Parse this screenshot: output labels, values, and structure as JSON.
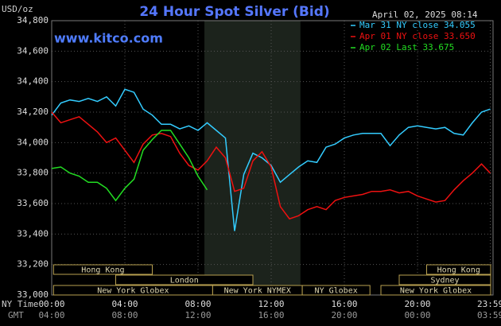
{
  "chart_data": {
    "type": "line",
    "title": "24 Hour Spot Silver (Bid)",
    "y_label": "USD/oz",
    "timestamp": "April 02, 2025 08:14",
    "source": "www.kitco.com",
    "x_label": "NY Time",
    "x2_label": "GMT",
    "x": [
      0,
      0.5,
      1,
      1.5,
      2,
      2.5,
      3,
      3.5,
      4,
      4.5,
      5,
      5.5,
      6,
      6.5,
      7,
      7.5,
      8,
      8.5,
      9,
      9.5,
      10,
      10.5,
      11,
      11.5,
      12,
      12.5,
      13,
      13.5,
      14,
      14.5,
      15,
      15.5,
      16,
      16.5,
      17,
      17.5,
      18,
      18.5,
      19,
      19.5,
      20,
      20.5,
      21,
      21.5,
      22,
      22.5,
      23,
      23.5,
      23.98
    ],
    "series": [
      {
        "name": "Mar 31 NY close 34.055",
        "color": "#33ccff",
        "values": [
          34180,
          34260,
          34280,
          34270,
          34290,
          34270,
          34300,
          34240,
          34350,
          34330,
          34220,
          34180,
          34120,
          34120,
          34090,
          34110,
          34080,
          34130,
          34080,
          34030,
          33420,
          33790,
          33930,
          33900,
          33850,
          33740,
          33790,
          33840,
          33880,
          33870,
          33970,
          33990,
          34030,
          34050,
          34060,
          34060,
          34060,
          33980,
          34050,
          34100,
          34110,
          34100,
          34090,
          34100,
          34060,
          34050,
          34130,
          34200,
          34220
        ]
      },
      {
        "name": "Apr 01 NY close 33.650",
        "color": "#ee1111",
        "values": [
          34200,
          34130,
          34150,
          34170,
          34120,
          34070,
          34000,
          34030,
          33950,
          33870,
          33990,
          34050,
          34060,
          34040,
          33930,
          33850,
          33820,
          33880,
          33970,
          33900,
          33680,
          33700,
          33880,
          33940,
          33840,
          33580,
          33500,
          33520,
          33560,
          33580,
          33560,
          33620,
          33640,
          33650,
          33660,
          33680,
          33680,
          33690,
          33670,
          33680,
          33650,
          33630,
          33610,
          33620,
          33690,
          33750,
          33800,
          33860,
          33800
        ]
      },
      {
        "name": "Apr 02 Last 33.675",
        "color": "#22dd22",
        "values": [
          33830,
          33840,
          33800,
          33780,
          33740,
          33740,
          33700,
          33620,
          33700,
          33760,
          33950,
          34020,
          34080,
          34080,
          33990,
          33900,
          33780,
          33690,
          null,
          null,
          null,
          null,
          null,
          null,
          null,
          null,
          null,
          null,
          null,
          null,
          null,
          null,
          null,
          null,
          null,
          null,
          null,
          null,
          null,
          null,
          null,
          null,
          null,
          null,
          null,
          null,
          null,
          null,
          null
        ]
      }
    ],
    "xlim": [
      0,
      24
    ],
    "ylim": [
      33000,
      34800
    ],
    "yticks": [
      {
        "value": 33000,
        "label": "33,000"
      },
      {
        "value": 33200,
        "label": "33,200"
      },
      {
        "value": 33400,
        "label": "33,400"
      },
      {
        "value": 33600,
        "label": "33,600"
      },
      {
        "value": 33800,
        "label": "33,800"
      },
      {
        "value": 34000,
        "label": "34,000"
      },
      {
        "value": 34200,
        "label": "34,200"
      },
      {
        "value": 34400,
        "label": "34,400"
      },
      {
        "value": 34600,
        "label": "34,600"
      },
      {
        "value": 34800,
        "label": "34,800"
      }
    ],
    "xticks": [
      {
        "value": 0,
        "label": "00:00"
      },
      {
        "value": 4,
        "label": "04:00"
      },
      {
        "value": 8,
        "label": "08:00"
      },
      {
        "value": 12,
        "label": "12:00"
      },
      {
        "value": 16,
        "label": "16:00"
      },
      {
        "value": 20,
        "label": "20:00"
      },
      {
        "value": 23.98,
        "label": "23:59"
      }
    ],
    "x2ticks": [
      {
        "value": 0,
        "label": "04:00"
      },
      {
        "value": 4,
        "label": "08:00"
      },
      {
        "value": 8,
        "label": "12:00"
      },
      {
        "value": 12,
        "label": "16:00"
      },
      {
        "value": 16,
        "label": "20:00"
      },
      {
        "value": 20,
        "label": "00:00"
      },
      {
        "value": 23.98,
        "label": "03:59"
      }
    ],
    "highlight_x": [
      8.35,
      13.6
    ],
    "grid": true,
    "session_rows": [
      [
        {
          "name": "Hong Kong",
          "start": 0.1,
          "end": 5.5
        },
        {
          "name": "Hong Kong",
          "start": 20.5,
          "end": 24
        }
      ],
      [
        {
          "name": "London",
          "start": 3.5,
          "end": 11
        },
        {
          "name": "Sydney",
          "start": 19,
          "end": 24
        }
      ],
      [
        {
          "name": "New York Globex",
          "start": 0.1,
          "end": 8.8
        },
        {
          "name": "New York NYMEX",
          "start": 8.8,
          "end": 13.7
        },
        {
          "name": "NY Globex",
          "start": 13.7,
          "end": 17.4
        },
        {
          "name": "New York Globex",
          "start": 18,
          "end": 24
        }
      ]
    ]
  }
}
